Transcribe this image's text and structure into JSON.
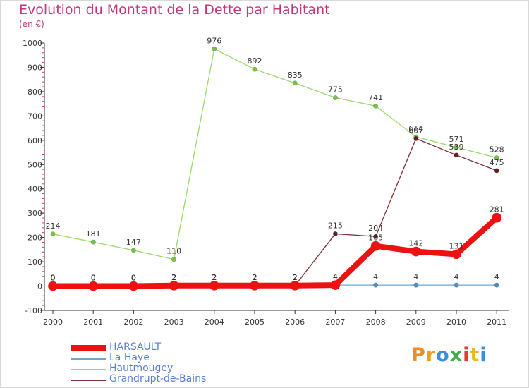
{
  "title": "Evolution du Montant de la Dette par Habitant",
  "unit": "(en €)",
  "logo": {
    "text": "Proxiti",
    "colors": [
      "#f28c1f",
      "#e7a223",
      "#3b8fd6",
      "#3fae49",
      "#e23c3c",
      "#f0b428",
      "#3b8fd6"
    ]
  },
  "chart_data": {
    "type": "line",
    "title": "Evolution du Montant de la Dette par Habitant",
    "ylabel": "(en €)",
    "xlabel": "",
    "ylim": [
      -100,
      1000
    ],
    "yticks": [
      -100,
      0,
      100,
      200,
      300,
      400,
      500,
      600,
      700,
      800,
      900,
      1000
    ],
    "ytick_labels": [
      "-100",
      "0",
      "100",
      "200",
      "300",
      "400",
      "500",
      "600",
      "700",
      "800",
      "900",
      "1000"
    ],
    "x": [
      "2000",
      "2001",
      "2002",
      "2003",
      "2004",
      "2005",
      "2006",
      "2007",
      "2008",
      "2009",
      "2010",
      "2011"
    ],
    "series": [
      {
        "name": "Hautmougey",
        "color": "#99d96b",
        "marker": "#77c442",
        "values": [
          214,
          181,
          147,
          110,
          976,
          892,
          835,
          775,
          741,
          614,
          571,
          528
        ]
      },
      {
        "name": "Grandrupt-de-Bains",
        "color": "#7a3035",
        "marker": "#6a1e24",
        "values": [
          0,
          0,
          0,
          2,
          2,
          2,
          2,
          215,
          204,
          607,
          539,
          475
        ]
      },
      {
        "name": "La Haye",
        "color": "#6ea5d1",
        "marker": "#4f8fc4",
        "values": [
          0,
          0,
          0,
          2,
          2,
          2,
          2,
          4,
          4,
          4,
          4,
          4
        ]
      },
      {
        "name": "HARSAULT",
        "color": "#ee1111",
        "marker": "#ee1111",
        "values": [
          0,
          0,
          0,
          2,
          2,
          2,
          2,
          4,
          165,
          142,
          131,
          281
        ]
      }
    ],
    "data_labels": [
      {
        "series": "Hautmougey",
        "labels": [
          "214",
          "181",
          "147",
          "110",
          "976",
          "892",
          "835",
          "775",
          "741",
          "614",
          "571",
          "528"
        ]
      },
      {
        "series": "Grandrupt-de-Bains",
        "labels": [
          "0",
          "0",
          "0",
          "2",
          "2",
          "2",
          "2",
          "215",
          "204",
          "607",
          "539",
          "475"
        ]
      },
      {
        "series": "La Haye",
        "labels": [
          "0",
          "0",
          "0",
          "2",
          "2",
          "2",
          "2",
          "4",
          "4",
          "4",
          "4",
          "4"
        ]
      },
      {
        "series": "HARSAULT",
        "labels": [
          "0",
          "0",
          "0",
          "2",
          "2",
          "2",
          "2",
          "4",
          "165",
          "142",
          "131",
          "281"
        ]
      }
    ],
    "legend": {
      "position": "bottom-left",
      "entries": [
        "HARSAULT",
        "La Haye",
        "Hautmougey",
        "Grandrupt-de-Bains"
      ]
    }
  }
}
